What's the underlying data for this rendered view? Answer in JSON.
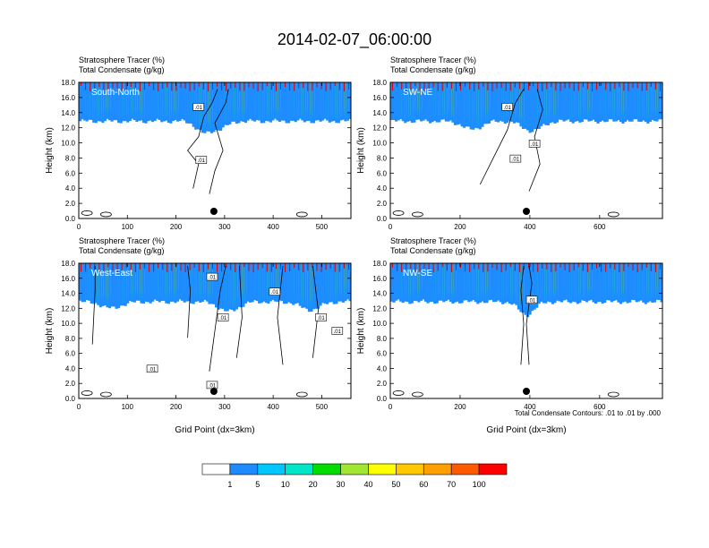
{
  "title": "2014-02-07_06:00:00",
  "colors": {
    "levels": [
      "#ffffff",
      "#1e8cff",
      "#00c8ff",
      "#00e6c8",
      "#00dc00",
      "#a0e632",
      "#ffff00",
      "#ffc800",
      "#ffa000",
      "#ff5a00",
      "#ff0000"
    ]
  },
  "colorbar": {
    "labels": [
      "1",
      "5",
      "10",
      "20",
      "30",
      "40",
      "50",
      "60",
      "70",
      "100"
    ]
  },
  "contour_note": "Total Condensate Contours: .01 to .01 by .000",
  "chart_data": [
    {
      "type": "heatmap",
      "panel_label": "South-North",
      "title_lines": [
        "Stratosphere Tracer   (%)",
        "Total Condensate   (g/kg)"
      ],
      "ylabel": "Height (km)",
      "xlabel": "",
      "xlim": [
        0,
        560
      ],
      "ylim": [
        0,
        18
      ],
      "xticks": [
        "0",
        "100",
        "200",
        "300",
        "400",
        "500"
      ],
      "yticks": [
        "0.0",
        "2.0",
        "4.0",
        "6.0",
        "8.0",
        "10.0",
        "12.0",
        "14.0",
        "16.0",
        "18.0"
      ],
      "contour_labels": [
        ".01",
        ".01"
      ],
      "marker_x": 278
    },
    {
      "type": "heatmap",
      "panel_label": "SW-NE",
      "title_lines": [
        "Stratosphere Tracer   (%)",
        "Total Condensate   (g/kg)"
      ],
      "ylabel": "Height (km)",
      "xlabel": "",
      "xlim": [
        0,
        780
      ],
      "ylim": [
        0,
        18
      ],
      "xticks": [
        "0",
        "200",
        "400",
        "600"
      ],
      "yticks": [
        "0.0",
        "2.0",
        "4.0",
        "6.0",
        "8.0",
        "10.0",
        "12.0",
        "14.0",
        "16.0",
        "18.0"
      ],
      "contour_labels": [
        ".01",
        ".01",
        ".01"
      ],
      "marker_x": 390
    },
    {
      "type": "heatmap",
      "panel_label": "West-East",
      "title_lines": [
        "Stratosphere Tracer   (%)",
        "Total Condensate   (g/kg)"
      ],
      "ylabel": "Height (km)",
      "xlabel": "Grid Point (dx=3km)",
      "xlim": [
        0,
        560
      ],
      "ylim": [
        0,
        18
      ],
      "xticks": [
        "0",
        "100",
        "200",
        "300",
        "400",
        "500"
      ],
      "yticks": [
        "0.0",
        "2.0",
        "4.0",
        "6.0",
        "8.0",
        "10.0",
        "12.0",
        "14.0",
        "16.0",
        "18.0"
      ],
      "contour_labels": [
        ".01",
        ".01",
        ".01",
        ".01",
        ".01",
        ".01",
        ".01"
      ],
      "marker_x": 278
    },
    {
      "type": "heatmap",
      "panel_label": "NW-SE",
      "title_lines": [
        "Stratosphere Tracer   (%)",
        "Total Condensate   (g/kg)"
      ],
      "ylabel": "Height (km)",
      "xlabel": "Grid Point (dx=3km)",
      "xlim": [
        0,
        780
      ],
      "ylim": [
        0,
        18
      ],
      "xticks": [
        "0",
        "200",
        "400",
        "600"
      ],
      "yticks": [
        "0.0",
        "2.0",
        "4.0",
        "6.0",
        "8.0",
        "10.0",
        "12.0",
        "14.0",
        "16.0",
        "18.0"
      ],
      "contour_labels": [
        ".01"
      ],
      "marker_x": 390
    }
  ]
}
